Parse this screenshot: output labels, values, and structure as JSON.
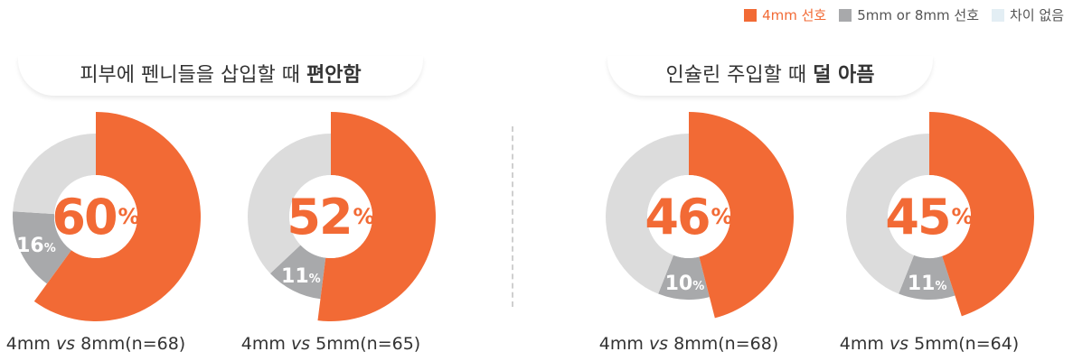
{
  "legend": [
    {
      "label": "4mm 선호",
      "color": "#f26a35",
      "text_color": "#f26a35"
    },
    {
      "label": "5mm or 8mm 선호",
      "color": "#a8a9ab",
      "text_color": "#555555"
    },
    {
      "label": "차이 없음",
      "color": "#e3eef4",
      "text_color": "#555555"
    }
  ],
  "groups": [
    {
      "title_prefix": "피부에 펜니들을 삽입할 때 ",
      "title_bold": "편안함"
    },
    {
      "title_prefix": "인슐린 주입할 때 ",
      "title_bold": "덜 아픔"
    }
  ],
  "colors": {
    "orange": "#f26a35",
    "gray": "#a8a9ab",
    "light": "#dcdcdc"
  },
  "chart_data": [
    {
      "type": "pie",
      "labels": [
        "4mm 선호",
        "5mm or 8mm 선호",
        "차이 없음"
      ],
      "values": [
        60,
        16,
        24
      ],
      "highlight_label": "60",
      "small_label": "16",
      "caption_a": "4mm ",
      "caption_vs": "vs",
      "caption_b": " 8mm(n=68)"
    },
    {
      "type": "pie",
      "labels": [
        "4mm 선호",
        "5mm or 8mm 선호",
        "차이 없음"
      ],
      "values": [
        52,
        11,
        37
      ],
      "highlight_label": "52",
      "small_label": "11",
      "caption_a": "4mm ",
      "caption_vs": "vs",
      "caption_b": " 5mm(n=65)"
    },
    {
      "type": "pie",
      "labels": [
        "4mm 선호",
        "5mm or 8mm 선호",
        "차이 없음"
      ],
      "values": [
        46,
        10,
        44
      ],
      "highlight_label": "46",
      "small_label": "10",
      "caption_a": "4mm ",
      "caption_vs": "vs",
      "caption_b": " 8mm(n=68)"
    },
    {
      "type": "pie",
      "labels": [
        "4mm 선호",
        "5mm or 8mm 선호",
        "차이 없음"
      ],
      "values": [
        45,
        11,
        44
      ],
      "highlight_label": "45",
      "small_label": "11",
      "caption_a": "4mm ",
      "caption_vs": "vs",
      "caption_b": " 5mm(n=64)"
    }
  ],
  "percent_sign": "%"
}
